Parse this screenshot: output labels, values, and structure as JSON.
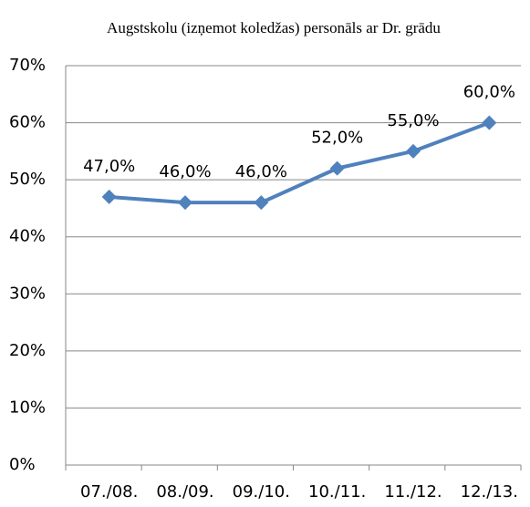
{
  "chart_data": {
    "type": "line",
    "title": "Augstskolu (izņemot koledžas) personāls ar Dr. grādu",
    "categories": [
      "07./08.",
      "08./09.",
      "09./10.",
      "10./11.",
      "11./12.",
      "12./13."
    ],
    "series": [
      {
        "name": "Augstskolu (izņemot koledžas) personāls ar Dr. grādu",
        "color": "#4f81bd",
        "values": [
          47,
          46,
          46,
          52,
          55,
          60
        ],
        "value_labels": [
          "47,0%",
          "46,0%",
          "46,0%",
          "52,0%",
          "55,0%",
          "60,0%"
        ]
      }
    ],
    "ylim": [
      0,
      70
    ],
    "yticks": [
      {
        "value": 0,
        "label": "0%"
      },
      {
        "value": 10,
        "label": "10%"
      },
      {
        "value": 20,
        "label": "20%"
      },
      {
        "value": 30,
        "label": "30%"
      },
      {
        "value": 40,
        "label": "40%"
      },
      {
        "value": 50,
        "label": "50%"
      },
      {
        "value": 60,
        "label": "60%"
      },
      {
        "value": 70,
        "label": "70%"
      }
    ],
    "grid": true
  }
}
